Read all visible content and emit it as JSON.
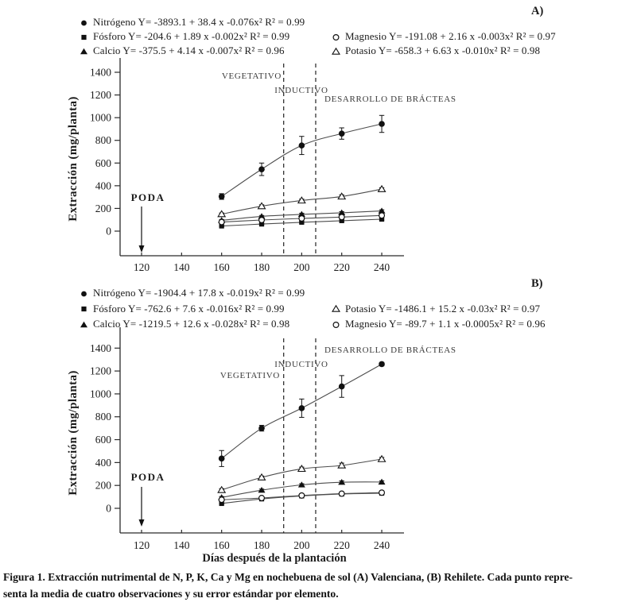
{
  "page": {
    "panel_a_label": "A)",
    "panel_b_label": "B)",
    "caption_line1": "Figura 1. Extracción nutrimental de N, P, K, Ca y Mg en nochebuena de sol (A) Valenciana, (B) Rehilete. Cada punto repre-",
    "caption_line2": "senta la media de cuatro observaciones y su error estándar por elemento."
  },
  "chart_data": [
    {
      "id": "A",
      "type": "scatter",
      "panel": "A",
      "title": "",
      "xlabel": "",
      "ylabel": "Extracción (mg/planta)",
      "x": [
        160,
        180,
        200,
        220,
        240
      ],
      "xticks": [
        120,
        140,
        160,
        180,
        200,
        220,
        240
      ],
      "yticks": [
        0,
        200,
        400,
        600,
        800,
        1000,
        1200,
        1400
      ],
      "xlim": [
        110,
        248
      ],
      "ylim": [
        0,
        1400
      ],
      "grid": false,
      "phase_boundary_days": [
        191,
        207
      ],
      "phase_labels": [
        "VEGETATIVO",
        "INDUCTIVO",
        "DESARROLLO DE BRÁCTEAS"
      ],
      "poda_label": "PODA",
      "poda_day": 120,
      "series": [
        {
          "name": "Nitrógeno",
          "marker": "circle-filled",
          "legend_col": "left",
          "legend_row": 0,
          "equation": "Y= -3893.1 + 38.4 x -0.076x² R² = 0.99",
          "values": [
            305,
            545,
            755,
            860,
            945
          ],
          "errors": [
            25,
            55,
            80,
            50,
            75
          ]
        },
        {
          "name": "Fósforo",
          "marker": "square-filled",
          "legend_col": "left",
          "legend_row": 1,
          "equation": "Y= -204.6 + 1.89 x -0.002x² R² = 0.99",
          "values": [
            45,
            62,
            78,
            92,
            105
          ],
          "errors": [
            6,
            6,
            8,
            8,
            8
          ]
        },
        {
          "name": "Calcio",
          "marker": "triangle-filled",
          "legend_col": "left",
          "legend_row": 2,
          "equation": "Y= -375.5 + 4.14 x -0.007x² R² = 0.96",
          "values": [
            95,
            130,
            148,
            162,
            178
          ],
          "errors": [
            8,
            8,
            10,
            10,
            10
          ]
        },
        {
          "name": "Magnesio",
          "marker": "circle-open",
          "legend_col": "right",
          "legend_row": 1,
          "equation": "Y= -191.08 + 2.16 x -0.003x² R² = 0.97",
          "values": [
            80,
            98,
            112,
            124,
            138
          ],
          "errors": [
            6,
            6,
            6,
            8,
            8
          ]
        },
        {
          "name": "Potasio",
          "marker": "triangle-open",
          "legend_col": "right",
          "legend_row": 2,
          "equation": "Y= -658.3 + 6.63 x -0.010x² R² = 0.98",
          "values": [
            150,
            220,
            270,
            305,
            370
          ],
          "errors": [
            10,
            12,
            12,
            15,
            12
          ]
        }
      ]
    },
    {
      "id": "B",
      "type": "scatter",
      "panel": "B",
      "title": "",
      "xlabel": "Días después de la plantación",
      "ylabel": "Extracción (mg/planta)",
      "x": [
        160,
        180,
        200,
        220,
        240
      ],
      "xticks": [
        120,
        140,
        160,
        180,
        200,
        220,
        240
      ],
      "yticks": [
        0,
        200,
        400,
        600,
        800,
        1000,
        1200,
        1400
      ],
      "xlim": [
        110,
        248
      ],
      "ylim": [
        0,
        1400
      ],
      "grid": false,
      "phase_boundary_days": [
        191,
        207
      ],
      "phase_labels": [
        "VEGETATIVO",
        "INDUCTIVO",
        "DESARROLLO DE BRÁCTEAS"
      ],
      "poda_label": "PODA",
      "poda_day": 120,
      "series": [
        {
          "name": "Nitrógeno",
          "marker": "circle-filled",
          "legend_col": "left",
          "legend_row": 0,
          "equation": "Y= -1904.4 + 17.8 x -0.019x² R² = 0.99",
          "values": [
            435,
            700,
            875,
            1065,
            1260
          ],
          "errors": [
            70,
            25,
            80,
            95,
            15
          ]
        },
        {
          "name": "Fósforo",
          "marker": "square-filled",
          "legend_col": "left",
          "legend_row": 1,
          "equation": "Y= -762.6 + 7.6 x -0.016x² R² = 0.99",
          "values": [
            42,
            82,
            108,
            125,
            132
          ],
          "errors": [
            6,
            8,
            8,
            8,
            8
          ]
        },
        {
          "name": "Calcio",
          "marker": "triangle-filled",
          "legend_col": "left",
          "legend_row": 2,
          "equation": "Y= -1219.5 + 12.6 x -0.028x² R² = 0.98",
          "values": [
            95,
            158,
            205,
            228,
            230
          ],
          "errors": [
            8,
            10,
            10,
            12,
            10
          ]
        },
        {
          "name": "Potasio",
          "marker": "triangle-open",
          "legend_col": "right",
          "legend_row": 1,
          "equation": "Y= -1486.1 + 15.2 x -0.03x² R² = 0.97",
          "values": [
            160,
            270,
            345,
            375,
            430
          ],
          "errors": [
            12,
            12,
            15,
            20,
            15
          ]
        },
        {
          "name": "Magnesio",
          "marker": "circle-open",
          "legend_col": "right",
          "legend_row": 2,
          "equation": "Y= -89.7 + 1.1 x -0.0005x² R² = 0.96",
          "values": [
            75,
            90,
            112,
            128,
            137
          ],
          "errors": [
            6,
            6,
            6,
            8,
            8
          ]
        }
      ]
    }
  ]
}
